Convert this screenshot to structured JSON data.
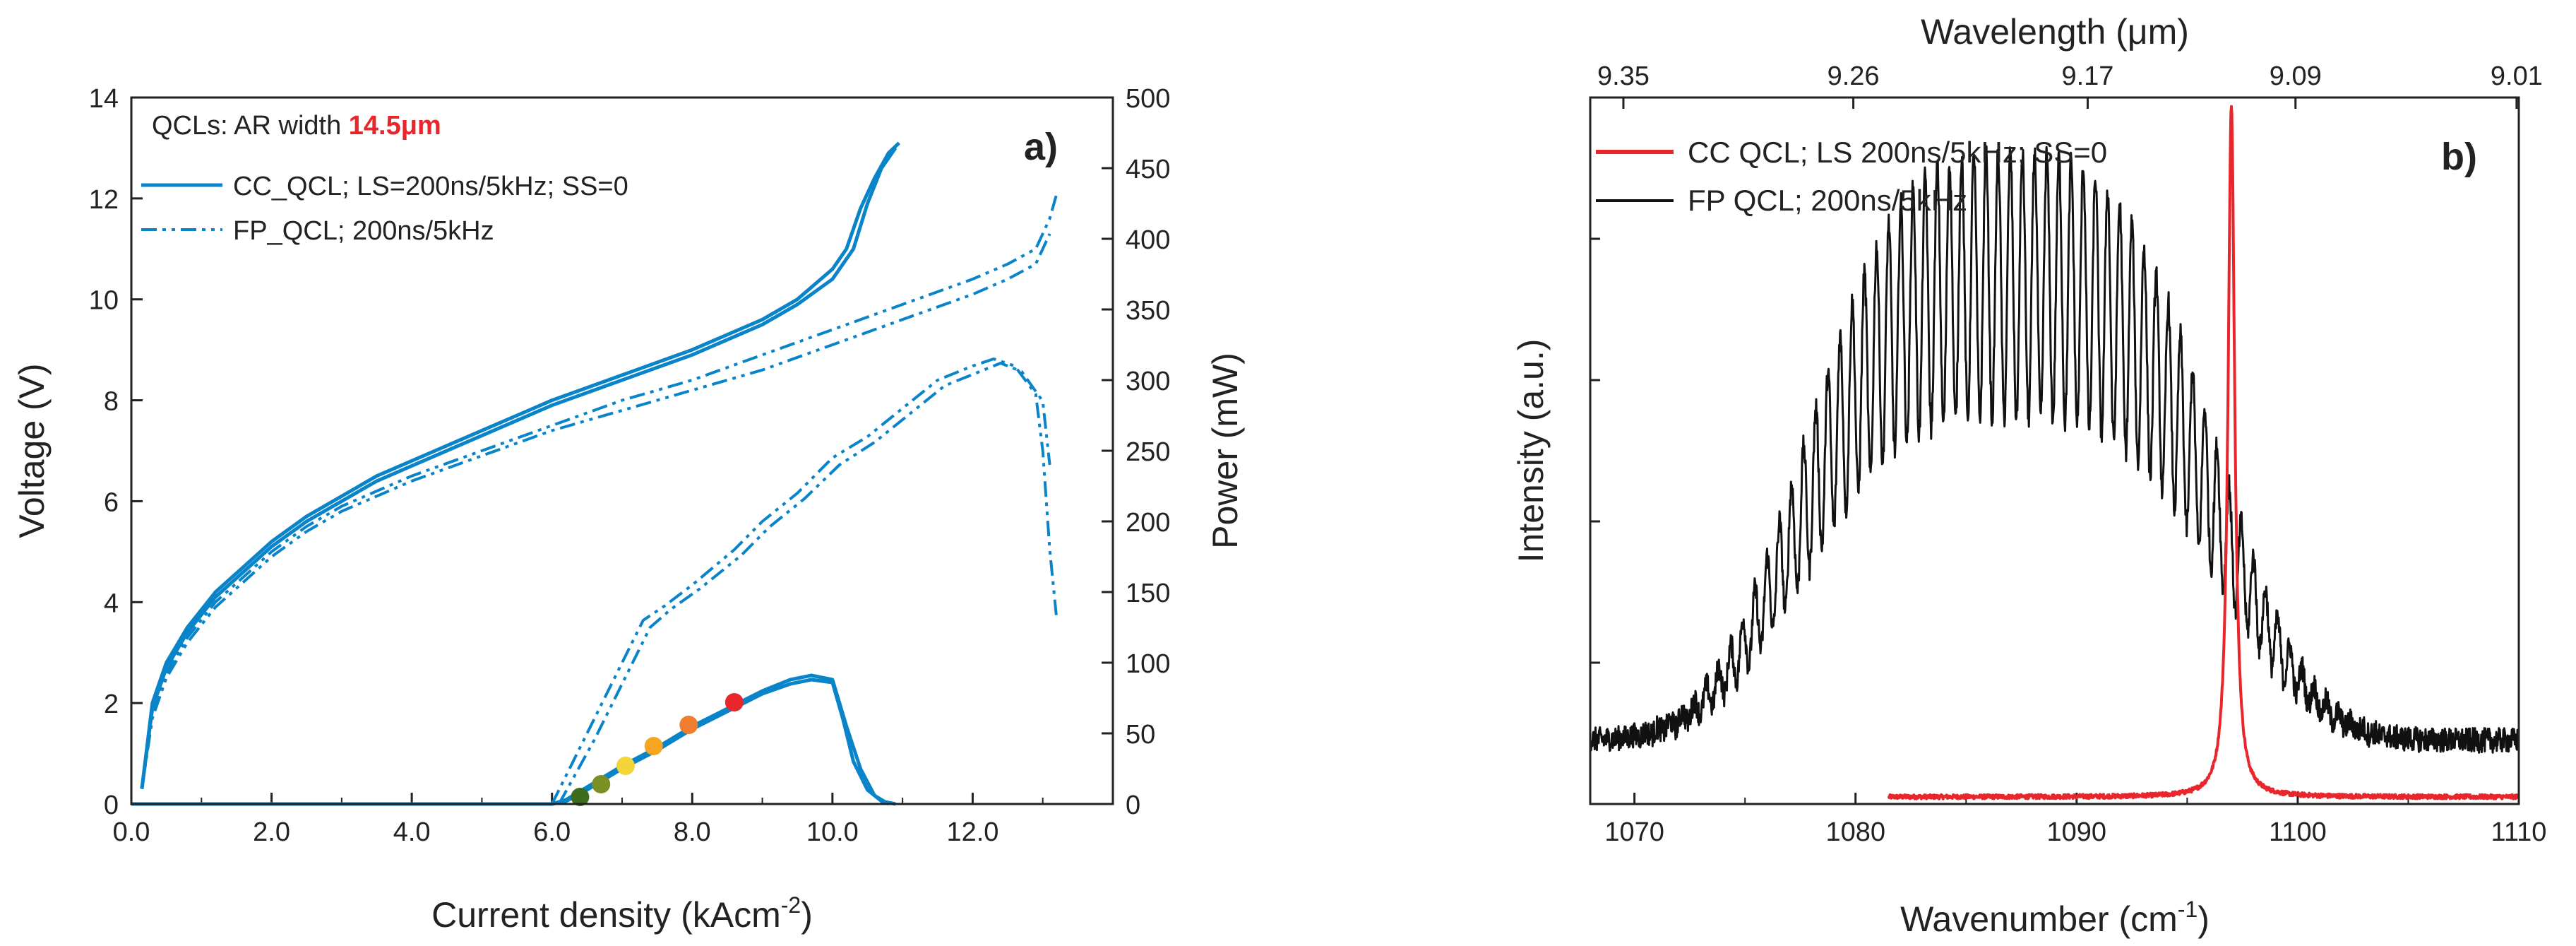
{
  "colors": {
    "blue": "#0a84c9",
    "red": "#e8262b",
    "black": "#111111",
    "axis": "#222222"
  },
  "chart_data": [
    {
      "id": "a",
      "type": "line",
      "panel_label": "a)",
      "xlabel": "Current density (kAcm",
      "xlabel_sup": "-2",
      "xlabel_end": ")",
      "ylabel": "Voltage (V)",
      "y2label": "Power (mW)",
      "xlim": [
        0,
        14
      ],
      "ylim": [
        0,
        14
      ],
      "y2lim": [
        0,
        500
      ],
      "xticks": [
        "0.0",
        "2.0",
        "4.0",
        "6.0",
        "8.0",
        "10.0",
        "12.0"
      ],
      "xtick_values": [
        0,
        2,
        4,
        6,
        8,
        10,
        12
      ],
      "yticks": [
        "0",
        "2",
        "4",
        "6",
        "8",
        "10",
        "12",
        "14"
      ],
      "ytick_values": [
        0,
        2,
        4,
        6,
        8,
        10,
        12,
        14
      ],
      "y2ticks": [
        "0",
        "50",
        "100",
        "150",
        "200",
        "250",
        "300",
        "350",
        "400",
        "450",
        "500"
      ],
      "y2tick_values": [
        0,
        50,
        100,
        150,
        200,
        250,
        300,
        350,
        400,
        450,
        500
      ],
      "annotation_prefix": "QCLs: AR width ",
      "annotation_value": "14.5μm",
      "legend": [
        {
          "name": "CC_QCL; LS=200ns/5kHz; SS=0",
          "style": "solid"
        },
        {
          "name": "FP_QCL; 200ns/5kHz",
          "style": "dashdot"
        }
      ],
      "series": [
        {
          "name": "CC_QCL voltage 1",
          "axis": "left",
          "style": "solid",
          "x": [
            0.15,
            0.3,
            0.5,
            0.8,
            1.2,
            1.6,
            2.0,
            2.5,
            3.0,
            3.5,
            4.0,
            5.0,
            6.0,
            7.0,
            8.0,
            9.0,
            9.5,
            10.0,
            10.2,
            10.4,
            10.6,
            10.8,
            10.95
          ],
          "y": [
            0.3,
            2.0,
            2.8,
            3.5,
            4.2,
            4.7,
            5.2,
            5.7,
            6.1,
            6.5,
            6.8,
            7.4,
            8.0,
            8.5,
            9.0,
            9.6,
            10.0,
            10.6,
            11.0,
            11.8,
            12.4,
            12.9,
            13.1
          ]
        },
        {
          "name": "CC_QCL voltage 2",
          "axis": "left",
          "style": "solid",
          "x": [
            0.15,
            0.3,
            0.5,
            0.8,
            1.2,
            1.6,
            2.0,
            2.5,
            3.0,
            3.5,
            4.0,
            5.0,
            6.0,
            7.0,
            8.0,
            9.0,
            9.5,
            10.0,
            10.3,
            10.5,
            10.7,
            10.9
          ],
          "y": [
            0.3,
            1.9,
            2.7,
            3.4,
            4.1,
            4.6,
            5.1,
            5.6,
            6.0,
            6.4,
            6.7,
            7.3,
            7.9,
            8.4,
            8.9,
            9.5,
            9.9,
            10.4,
            11.0,
            11.9,
            12.6,
            13.0
          ]
        },
        {
          "name": "CC_QCL power 1",
          "axis": "right",
          "style": "solid",
          "x": [
            0,
            6.0,
            6.2,
            6.5,
            7.0,
            7.5,
            8.0,
            8.6,
            9.0,
            9.4,
            9.7,
            10.0,
            10.15,
            10.3,
            10.5,
            10.7,
            10.9
          ],
          "y": [
            0,
            0,
            2,
            10,
            25,
            38,
            53,
            68,
            78,
            85,
            88,
            86,
            60,
            30,
            10,
            2,
            0
          ]
        },
        {
          "name": "CC_QCL power 2",
          "axis": "right",
          "style": "solid",
          "x": [
            0,
            6.0,
            6.2,
            6.5,
            7.0,
            7.5,
            8.0,
            8.6,
            9.0,
            9.4,
            9.7,
            10.0,
            10.2,
            10.4,
            10.6,
            10.8
          ],
          "y": [
            0,
            0,
            3,
            12,
            27,
            40,
            55,
            70,
            80,
            88,
            91,
            88,
            55,
            25,
            6,
            0
          ]
        },
        {
          "name": "FP_QCL voltage 1",
          "axis": "left",
          "style": "dashdot",
          "x": [
            0.15,
            0.3,
            0.5,
            0.8,
            1.2,
            1.6,
            2.0,
            2.5,
            3.0,
            3.5,
            4.0,
            5.0,
            6.0,
            7.0,
            8.0,
            9.0,
            10.0,
            11.0,
            12.0,
            12.5,
            12.9,
            13.1,
            13.2
          ],
          "y": [
            0.3,
            1.8,
            2.6,
            3.3,
            4.0,
            4.5,
            5.0,
            5.5,
            5.9,
            6.2,
            6.5,
            7.0,
            7.5,
            8.0,
            8.4,
            8.9,
            9.4,
            9.9,
            10.4,
            10.7,
            11.0,
            11.6,
            12.1
          ]
        },
        {
          "name": "FP_QCL voltage 2",
          "axis": "left",
          "style": "dashdot",
          "x": [
            0.15,
            0.3,
            0.5,
            0.8,
            1.2,
            1.6,
            2.0,
            2.5,
            3.0,
            3.5,
            4.0,
            5.0,
            6.0,
            7.0,
            8.0,
            9.0,
            10.0,
            11.0,
            12.0,
            12.5,
            12.9,
            13.1
          ],
          "y": [
            0.3,
            1.7,
            2.5,
            3.2,
            3.9,
            4.4,
            4.9,
            5.4,
            5.8,
            6.1,
            6.4,
            6.9,
            7.4,
            7.8,
            8.2,
            8.6,
            9.1,
            9.6,
            10.1,
            10.4,
            10.7,
            11.3
          ]
        },
        {
          "name": "FP_QCL power 1",
          "axis": "right",
          "style": "dashdot",
          "x": [
            6.0,
            6.5,
            7.0,
            7.3,
            7.6,
            8.0,
            8.6,
            9.0,
            9.5,
            10.0,
            10.5,
            11.0,
            11.5,
            12.0,
            12.3,
            12.6,
            12.9,
            13.0,
            13.1,
            13.2
          ],
          "y": [
            0,
            50,
            100,
            130,
            140,
            155,
            180,
            200,
            220,
            245,
            260,
            280,
            300,
            310,
            315,
            310,
            290,
            250,
            180,
            130
          ]
        },
        {
          "name": "FP_QCL power 2",
          "axis": "right",
          "style": "dashdot",
          "x": [
            6.1,
            6.6,
            7.1,
            7.4,
            7.7,
            8.1,
            8.7,
            9.1,
            9.6,
            10.1,
            10.6,
            11.1,
            11.6,
            12.1,
            12.4,
            12.7,
            13.0,
            13.1
          ],
          "y": [
            0,
            45,
            95,
            125,
            138,
            152,
            176,
            196,
            216,
            240,
            256,
            276,
            296,
            306,
            312,
            306,
            285,
            240
          ]
        }
      ],
      "markers": [
        {
          "x": 6.4,
          "y": 5,
          "color": "#3f6b1f"
        },
        {
          "x": 6.7,
          "y": 14,
          "color": "#7a8f24"
        },
        {
          "x": 7.05,
          "y": 27,
          "color": "#f2d537"
        },
        {
          "x": 7.45,
          "y": 41,
          "color": "#f6a623"
        },
        {
          "x": 7.95,
          "y": 56,
          "color": "#f07d2e"
        },
        {
          "x": 8.6,
          "y": 72,
          "color": "#e8262b"
        }
      ]
    },
    {
      "id": "b",
      "type": "line",
      "panel_label": "b)",
      "xlabel": "Wavenumber (cm",
      "xlabel_sup": "-1",
      "xlabel_end": ")",
      "ylabel": "Intensity (a.u.)",
      "top_xlabel": "Wavelength (μm)",
      "xlim": [
        1068,
        1110
      ],
      "ylim": [
        0,
        1
      ],
      "xticks": [
        "1070",
        "1080",
        "1090",
        "1100",
        "1110"
      ],
      "xtick_values": [
        1070,
        1080,
        1090,
        1100,
        1110
      ],
      "top_xticks": [
        "9.35",
        "9.26",
        "9.17",
        "9.09",
        "9.01"
      ],
      "top_xtick_values": [
        1069.5,
        1079.9,
        1090.5,
        1099.9,
        1109.9
      ],
      "legend": [
        {
          "name": "CC  QCL; LS 200ns/5kHz; SS=0",
          "color": "red"
        },
        {
          "name": "FP QCL; 200ns/5kHz",
          "color": "black"
        }
      ],
      "series": [
        {
          "name": "CC QCL; LS 200ns/5kHz; SS=0",
          "kind": "cc_peak",
          "x_start": 1081.5,
          "x_end": 1110,
          "center": 1097.0,
          "width": 0.18,
          "peak": 0.98,
          "baseline": 0.01
        },
        {
          "name": "FP QCL; 200ns/5kHz",
          "kind": "fp_modes",
          "x_start": 1068,
          "x_end": 1110,
          "baseline": 0.09,
          "envelope_center": 1087,
          "envelope_width": 10.5,
          "envelope_peak": 0.83,
          "mode_spacing": 0.55,
          "modulation": 0.45
        }
      ]
    }
  ]
}
